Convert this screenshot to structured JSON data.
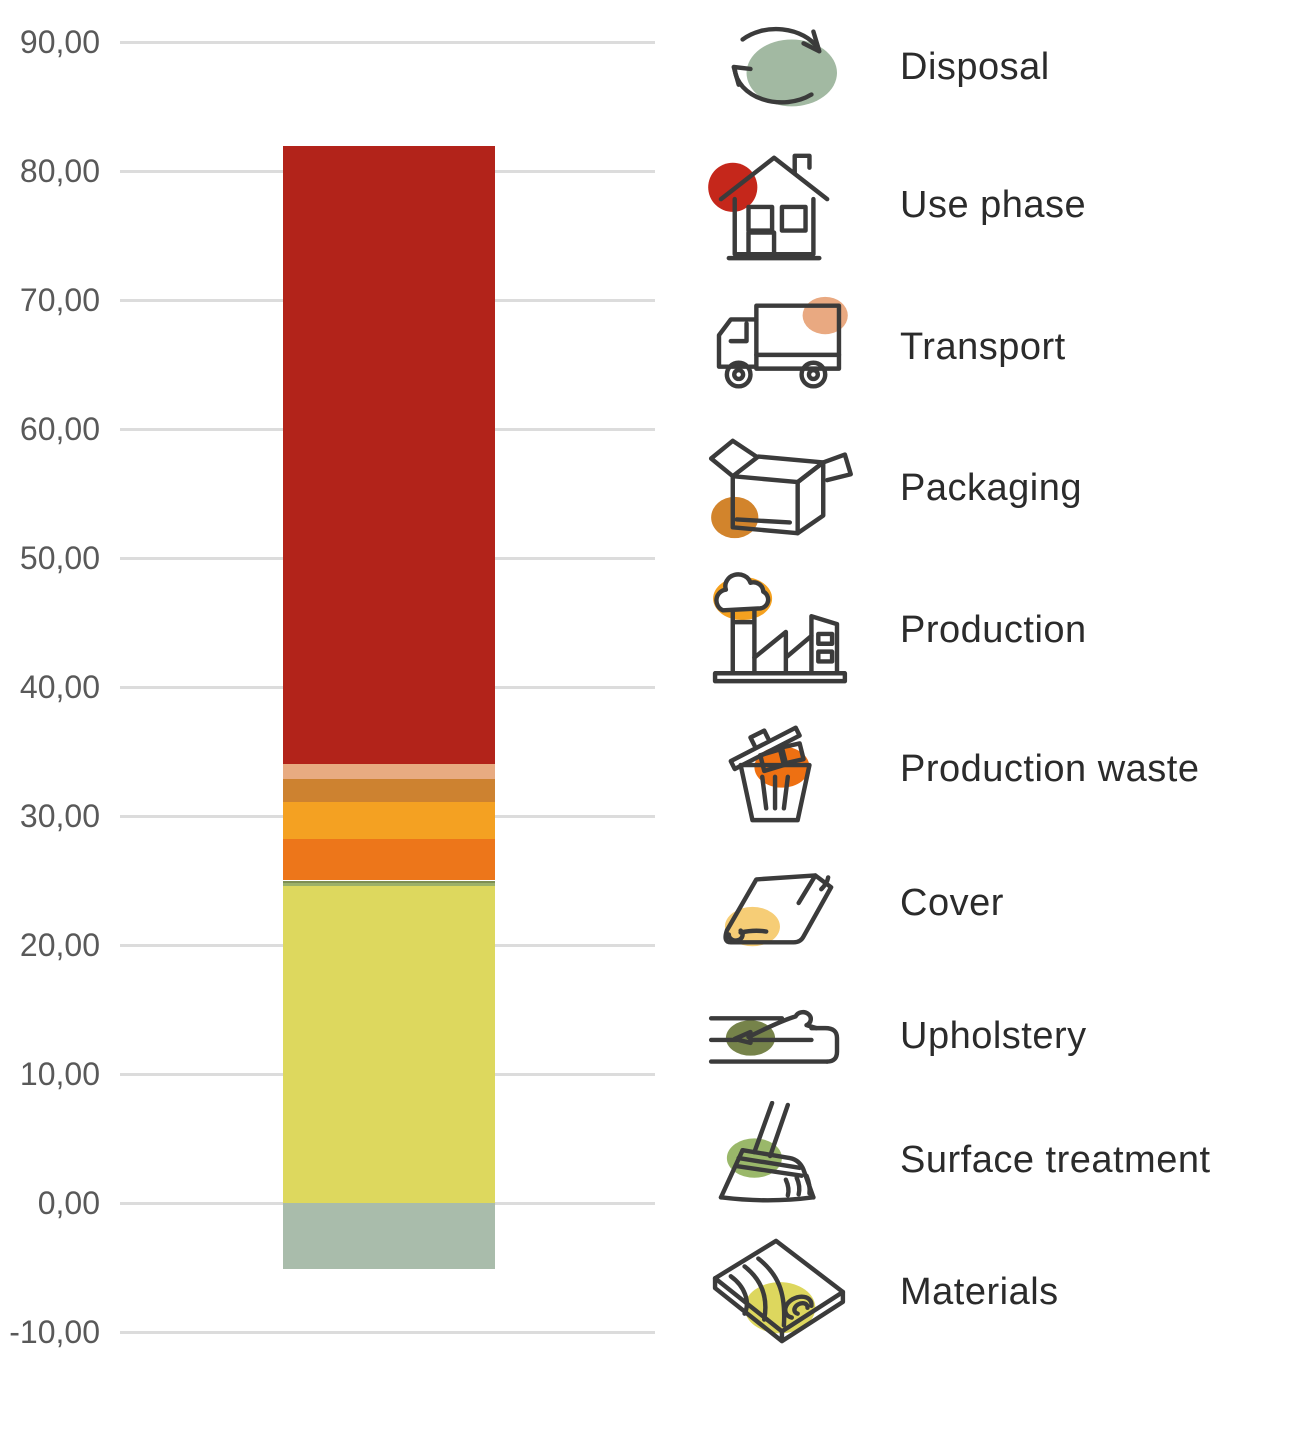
{
  "chart_data": {
    "type": "bar",
    "stacked": true,
    "title": "",
    "xlabel": "",
    "ylabel": "",
    "categories": [
      ""
    ],
    "ylim": [
      -10,
      90
    ],
    "grid": true,
    "legend_position": "right",
    "yticks": [
      {
        "label": "90,00",
        "value": 90
      },
      {
        "label": "80,00",
        "value": 80
      },
      {
        "label": "70,00",
        "value": 70
      },
      {
        "label": "60,00",
        "value": 60
      },
      {
        "label": "50,00",
        "value": 50
      },
      {
        "label": "40,00",
        "value": 40
      },
      {
        "label": "30,00",
        "value": 30
      },
      {
        "label": "20,00",
        "value": 20
      },
      {
        "label": "10,00",
        "value": 10
      },
      {
        "label": "0,00",
        "value": 0
      },
      {
        "label": "-10,00",
        "value": -10
      }
    ],
    "series": [
      {
        "name": "Materials",
        "value": 24.6,
        "color": "#ddd85e"
      },
      {
        "name": "Surface treatment",
        "value": 0.2,
        "color": "#9cb169"
      },
      {
        "name": "Upholstery",
        "value": 0.2,
        "color": "#7e8e52"
      },
      {
        "name": "Cover",
        "value": 0.0,
        "color": "#f6cd76"
      },
      {
        "name": "Production waste",
        "value": 3.2,
        "color": "#ed761a"
      },
      {
        "name": "Production",
        "value": 2.9,
        "color": "#f4a122"
      },
      {
        "name": "Packaging",
        "value": 1.8,
        "color": "#cd8230"
      },
      {
        "name": "Transport",
        "value": 1.1,
        "color": "#e8ab81"
      },
      {
        "name": "Use phase",
        "value": 47.9,
        "color": "#b2231a"
      },
      {
        "name": "Disposal",
        "value": -5.1,
        "color": "#a9bcab"
      }
    ]
  },
  "legend": {
    "items": [
      {
        "label": "Disposal",
        "icon": "recycle-icon",
        "blob_color": "#a2b9a2"
      },
      {
        "label": "Use phase",
        "icon": "house-icon",
        "blob_color": "#c5271b"
      },
      {
        "label": "Transport",
        "icon": "truck-icon",
        "blob_color": "#e9a981"
      },
      {
        "label": "Packaging",
        "icon": "package-box-icon",
        "blob_color": "#d2842c"
      },
      {
        "label": "Production",
        "icon": "factory-icon",
        "blob_color": "#f5a11f"
      },
      {
        "label": "Production waste",
        "icon": "trash-can-icon",
        "blob_color": "#ee7012"
      },
      {
        "label": "Cover",
        "icon": "folded-cover-icon",
        "blob_color": "#f6cd76"
      },
      {
        "label": "Upholstery",
        "icon": "mattress-stitching-icon",
        "blob_color": "#76834a"
      },
      {
        "label": "Surface treatment",
        "icon": "broom-icon",
        "blob_color": "#9ab86a"
      },
      {
        "label": "Materials",
        "icon": "wood-plank-icon",
        "blob_color": "#ddd75e"
      }
    ]
  }
}
